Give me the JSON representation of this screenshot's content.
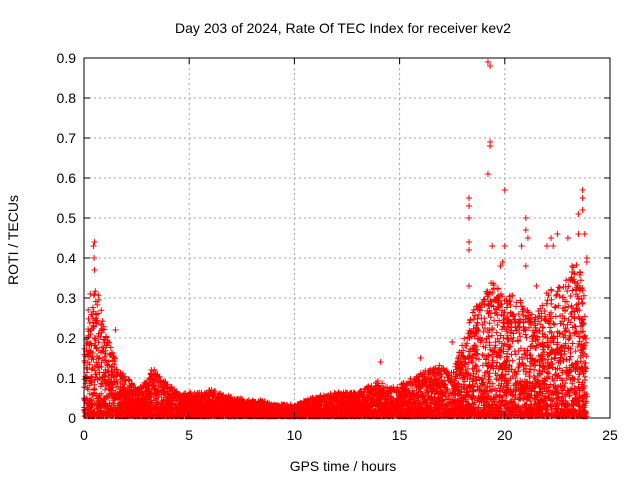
{
  "chart_data": {
    "type": "scatter",
    "title": "Day 203 of 2024, Rate Of TEC Index for receiver kev2",
    "xlabel": "GPS time / hours",
    "ylabel": "ROTI / TECUs",
    "xlim": [
      0,
      25
    ],
    "ylim": [
      0,
      0.9
    ],
    "xticks": [
      "0",
      "5",
      "10",
      "15",
      "20",
      "25"
    ],
    "yticks": [
      "0",
      "0.1",
      "0.2",
      "0.3",
      "0.4",
      "0.5",
      "0.6",
      "0.7",
      "0.8",
      "0.9"
    ],
    "grid": true,
    "marker": "plus",
    "color": "#ff0000",
    "envelope": [
      [
        0.0,
        0.18
      ],
      [
        0.3,
        0.27
      ],
      [
        0.6,
        0.33
      ],
      [
        1.0,
        0.22
      ],
      [
        1.5,
        0.14
      ],
      [
        2.0,
        0.1
      ],
      [
        2.5,
        0.07
      ],
      [
        3.0,
        0.09
      ],
      [
        3.3,
        0.12
      ],
      [
        3.8,
        0.09
      ],
      [
        4.5,
        0.06
      ],
      [
        5.0,
        0.06
      ],
      [
        5.5,
        0.06
      ],
      [
        6.0,
        0.07
      ],
      [
        7.0,
        0.05
      ],
      [
        8.0,
        0.04
      ],
      [
        8.5,
        0.04
      ],
      [
        9.0,
        0.03
      ],
      [
        10.0,
        0.03
      ],
      [
        11.0,
        0.05
      ],
      [
        12.0,
        0.06
      ],
      [
        13.0,
        0.06
      ],
      [
        14.0,
        0.09
      ],
      [
        14.5,
        0.07
      ],
      [
        15.0,
        0.08
      ],
      [
        16.0,
        0.11
      ],
      [
        17.0,
        0.13
      ],
      [
        17.5,
        0.11
      ],
      [
        18.0,
        0.19
      ],
      [
        18.5,
        0.27
      ],
      [
        19.0,
        0.3
      ],
      [
        19.5,
        0.36
      ],
      [
        20.0,
        0.3
      ],
      [
        20.5,
        0.32
      ],
      [
        21.0,
        0.27
      ],
      [
        21.5,
        0.25
      ],
      [
        22.0,
        0.32
      ],
      [
        22.5,
        0.32
      ],
      [
        23.0,
        0.35
      ],
      [
        23.5,
        0.4
      ],
      [
        23.9,
        0.28
      ]
    ],
    "outliers": [
      [
        0.45,
        0.43
      ],
      [
        0.5,
        0.44
      ],
      [
        0.48,
        0.4
      ],
      [
        0.5,
        0.37
      ],
      [
        0.5,
        0.31
      ],
      [
        0.3,
        0.31
      ],
      [
        0.2,
        0.27
      ],
      [
        1.5,
        0.22
      ],
      [
        3.2,
        0.12
      ],
      [
        14.1,
        0.14
      ],
      [
        16.0,
        0.15
      ],
      [
        17.5,
        0.19
      ],
      [
        18.3,
        0.55
      ],
      [
        18.3,
        0.53
      ],
      [
        18.3,
        0.5
      ],
      [
        18.3,
        0.44
      ],
      [
        18.3,
        0.42
      ],
      [
        18.3,
        0.33
      ],
      [
        19.2,
        0.89
      ],
      [
        19.3,
        0.88
      ],
      [
        19.3,
        0.69
      ],
      [
        19.3,
        0.68
      ],
      [
        19.2,
        0.61
      ],
      [
        19.4,
        0.43
      ],
      [
        19.8,
        0.38
      ],
      [
        19.9,
        0.39
      ],
      [
        20.0,
        0.57
      ],
      [
        20.0,
        0.43
      ],
      [
        20.8,
        0.43
      ],
      [
        21.0,
        0.5
      ],
      [
        21.0,
        0.47
      ],
      [
        21.1,
        0.45
      ],
      [
        21.0,
        0.38
      ],
      [
        21.5,
        0.33
      ],
      [
        22.0,
        0.43
      ],
      [
        22.2,
        0.45
      ],
      [
        22.3,
        0.43
      ],
      [
        22.5,
        0.46
      ],
      [
        23.0,
        0.45
      ],
      [
        23.2,
        0.38
      ],
      [
        23.5,
        0.51
      ],
      [
        23.5,
        0.46
      ],
      [
        23.7,
        0.57
      ],
      [
        23.7,
        0.55
      ],
      [
        23.7,
        0.52
      ],
      [
        23.8,
        0.46
      ],
      [
        23.9,
        0.4
      ],
      [
        23.9,
        0.39
      ]
    ]
  }
}
